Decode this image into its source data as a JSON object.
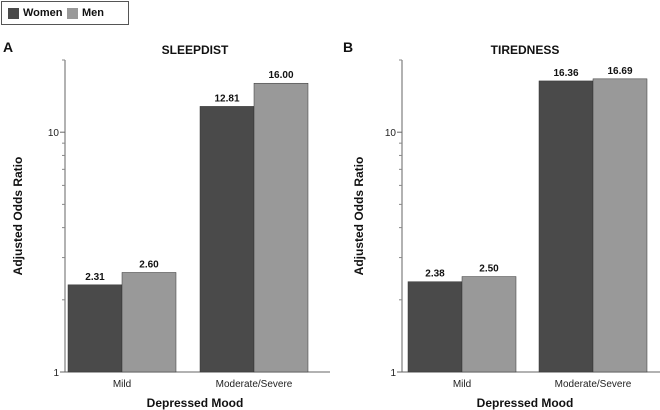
{
  "legend": {
    "series": [
      {
        "name": "Women",
        "color": "#4a4a4a"
      },
      {
        "name": "Men",
        "color": "#999999"
      }
    ]
  },
  "chart_data": [
    {
      "type": "bar",
      "panel_letter": "A",
      "title": "SLEEPDIST",
      "xlabel": "Depressed Mood",
      "ylabel": "Adjusted Odds Ratio",
      "yscale": "log",
      "ylim": [
        1,
        20
      ],
      "yticks": [
        1,
        10
      ],
      "ytick_labels": [
        "1",
        "10"
      ],
      "categories": [
        "Mild",
        "Moderate/Severe"
      ],
      "series": [
        {
          "name": "Women",
          "values": [
            2.31,
            12.81
          ],
          "labels": [
            "2.31",
            "12.81"
          ]
        },
        {
          "name": "Men",
          "values": [
            2.6,
            16.0
          ],
          "labels": [
            "2.60",
            "16.00"
          ]
        }
      ]
    },
    {
      "type": "bar",
      "panel_letter": "B",
      "title": "TIREDNESS",
      "xlabel": "Depressed Mood",
      "ylabel": "Adjusted Odds Ratio",
      "yscale": "log",
      "ylim": [
        1,
        20
      ],
      "yticks": [
        1,
        10
      ],
      "ytick_labels": [
        "1",
        "10"
      ],
      "categories": [
        "Mild",
        "Moderate/Severe"
      ],
      "series": [
        {
          "name": "Women",
          "values": [
            2.38,
            16.36
          ],
          "labels": [
            "2.38",
            "16.36"
          ]
        },
        {
          "name": "Men",
          "values": [
            2.5,
            16.69
          ],
          "labels": [
            "2.50",
            "16.69"
          ]
        }
      ]
    }
  ]
}
